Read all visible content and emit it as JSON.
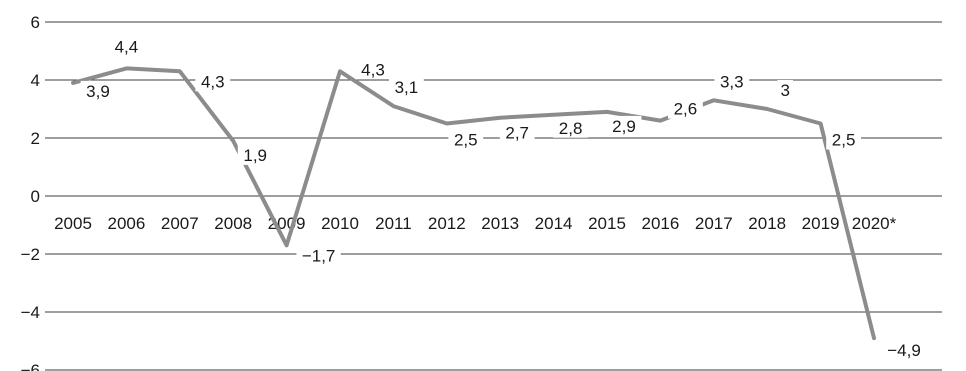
{
  "chart_data": {
    "type": "line",
    "title": "",
    "xlabel": "",
    "ylabel": "",
    "ylim": [
      -6,
      6
    ],
    "yticks": [
      6,
      4,
      2,
      0,
      -2,
      -4,
      -6
    ],
    "ytick_labels": [
      "6",
      "4",
      "2",
      "0",
      "−2",
      "−4",
      "−6"
    ],
    "grid": true,
    "categories": [
      "2005",
      "2006",
      "2007",
      "2008",
      "2009",
      "2010",
      "2011",
      "2012",
      "2013",
      "2014",
      "2015",
      "2016",
      "2017",
      "2018",
      "2019",
      "2020*"
    ],
    "series": [
      {
        "color": "#8c8c8c",
        "values": [
          3.9,
          4.4,
          4.3,
          1.9,
          -1.7,
          4.3,
          3.1,
          2.5,
          2.7,
          2.8,
          2.9,
          2.6,
          3.3,
          3.0,
          2.5,
          -4.9
        ],
        "labels": [
          "3,9",
          "4,4",
          "4,3",
          "1,9",
          "−1,7",
          "4,3",
          "3,1",
          "2,5",
          "2,7",
          "2,8",
          "2,9",
          "2,6",
          "3,3",
          "3",
          "2,5",
          "−4,9"
        ]
      }
    ]
  }
}
